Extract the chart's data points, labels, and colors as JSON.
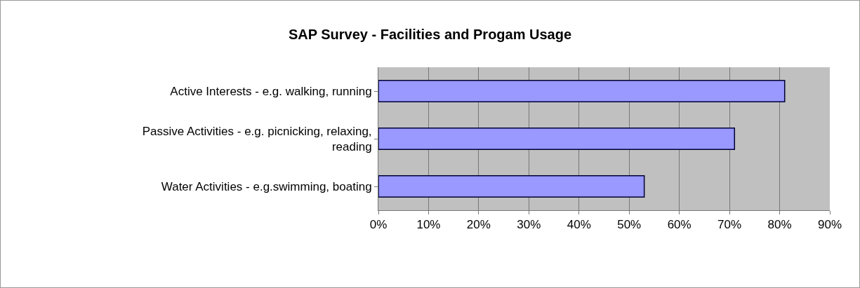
{
  "chart_data": {
    "type": "bar",
    "title": "SAP Survey - Facilities and Progam Usage",
    "orientation": "horizontal",
    "categories": [
      "Active Interests - e.g. walking, running",
      "Passive Activities - e.g. picnicking, relaxing, reading",
      "Water Activities - e.g.swimming, boating"
    ],
    "values": [
      81,
      71,
      53
    ],
    "color": "#9999ff",
    "xlim": [
      0,
      90
    ],
    "xticks": [
      {
        "value": 0,
        "label": "0%"
      },
      {
        "value": 10,
        "label": "10%"
      },
      {
        "value": 20,
        "label": "20%"
      },
      {
        "value": 30,
        "label": "30%"
      },
      {
        "value": 40,
        "label": "40%"
      },
      {
        "value": 50,
        "label": "50%"
      },
      {
        "value": 60,
        "label": "60%"
      },
      {
        "value": 70,
        "label": "70%"
      },
      {
        "value": 80,
        "label": "80%"
      },
      {
        "value": 90,
        "label": "90%"
      }
    ],
    "grid": "x",
    "legend": false
  }
}
